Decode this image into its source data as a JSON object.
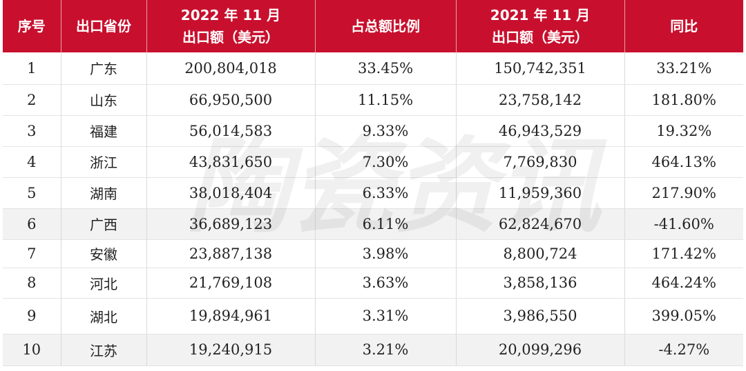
{
  "headers": {
    "rank": "序号",
    "province": "出口省份",
    "export_2022_line1": "2022 年 11 月",
    "export_2022_line2": "出口额（美元）",
    "share": "占总额比例",
    "export_2021_line1": "2021 年 11 月",
    "export_2021_line2": "出口额（美元）",
    "yoy": "同比"
  },
  "rows": [
    {
      "rank": "1",
      "province": "广东",
      "export_2022": "200,804,018",
      "share": "33.45%",
      "export_2021": "150,742,351",
      "yoy": "33.21%"
    },
    {
      "rank": "2",
      "province": "山东",
      "export_2022": "66,950,500",
      "share": "11.15%",
      "export_2021": "23,758,142",
      "yoy": "181.80%"
    },
    {
      "rank": "3",
      "province": "福建",
      "export_2022": "56,014,583",
      "share": "9.33%",
      "export_2021": "46,943,529",
      "yoy": "19.32%"
    },
    {
      "rank": "4",
      "province": "浙江",
      "export_2022": "43,831,650",
      "share": "7.30%",
      "export_2021": "7,769,830",
      "yoy": "464.13%"
    },
    {
      "rank": "5",
      "province": "湖南",
      "export_2022": "38,018,404",
      "share": "6.33%",
      "export_2021": "11,959,360",
      "yoy": "217.90%"
    },
    {
      "rank": "6",
      "province": "广西",
      "export_2022": "36,689,123",
      "share": "6.11%",
      "export_2021": "62,824,670",
      "yoy": "-41.60%"
    },
    {
      "rank": "7",
      "province": "安徽",
      "export_2022": "23,887,138",
      "share": "3.98%",
      "export_2021": "8,800,724",
      "yoy": "171.42%"
    },
    {
      "rank": "8",
      "province": "河北",
      "export_2022": "21,769,108",
      "share": "3.63%",
      "export_2021": "3,858,136",
      "yoy": "464.24%"
    },
    {
      "rank": "9",
      "province": "湖北",
      "export_2022": "19,894,961",
      "share": "3.31%",
      "export_2021": "3,986,550",
      "yoy": "399.05%"
    },
    {
      "rank": "10",
      "province": "江苏",
      "export_2022": "19,240,915",
      "share": "3.21%",
      "export_2021": "20,099,296",
      "yoy": "-4.27%"
    }
  ],
  "watermark": "陶瓷资讯",
  "colors": {
    "header_bg": "#c8102e",
    "header_text": "#ffffff",
    "shaded_row": "#f2f2f2"
  }
}
